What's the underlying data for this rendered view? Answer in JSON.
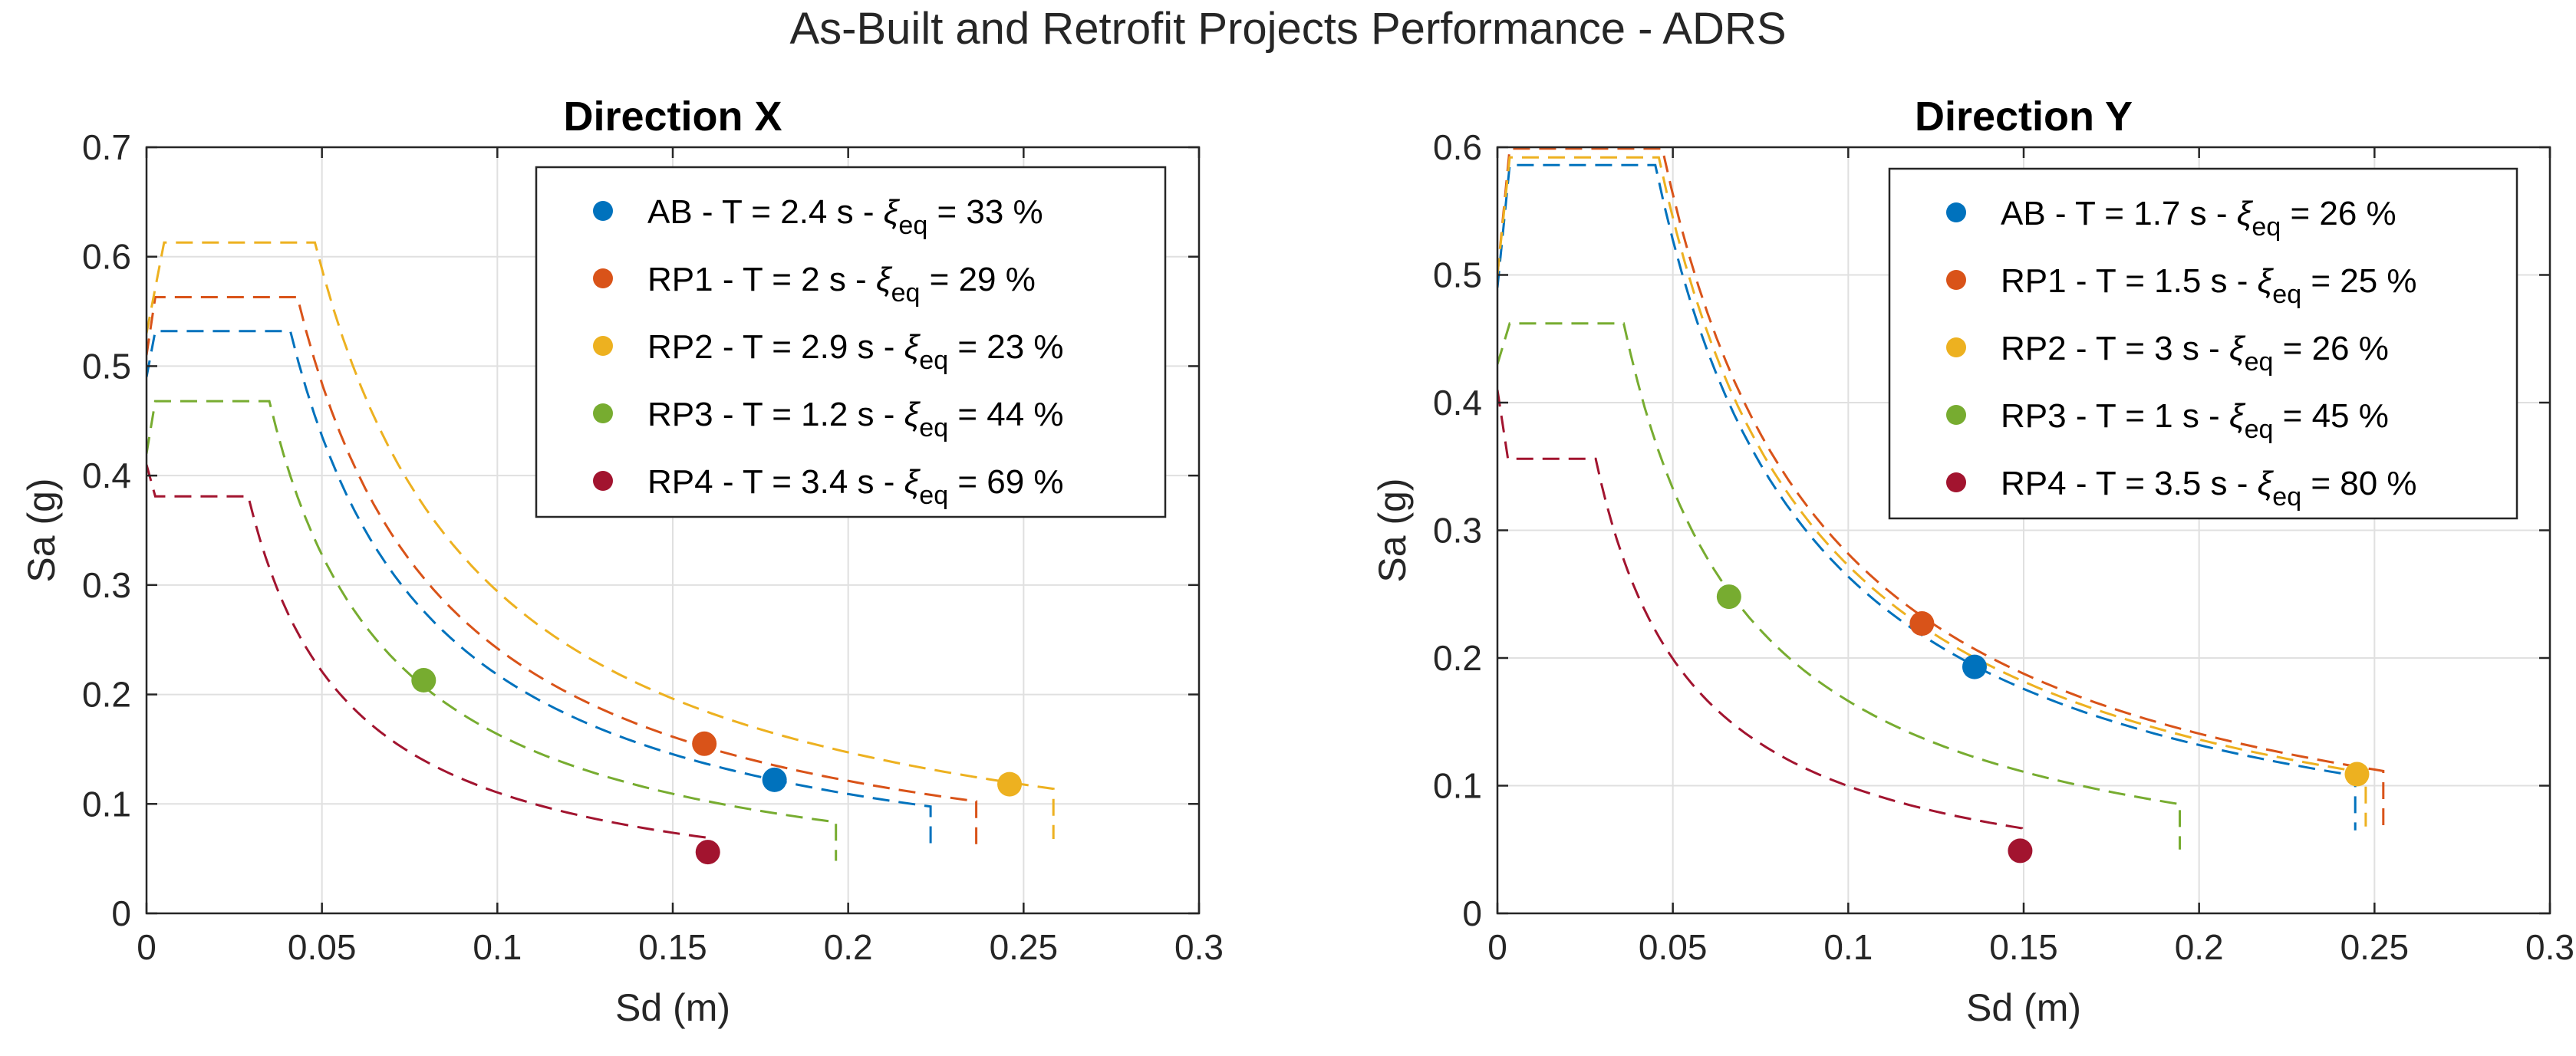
{
  "figure": {
    "title": "As-Built and Retrofit Projects Performance - ADRS"
  },
  "colors": {
    "AB": "#0072BD",
    "RP1": "#D95319",
    "RP2": "#EDB120",
    "RP3": "#77AC30",
    "RP4": "#A2142F"
  },
  "chart_data": [
    {
      "type": "line",
      "title": "Direction X",
      "xlabel": "Sd (m)",
      "ylabel": "Sa (g)",
      "xlim": [
        0,
        0.3
      ],
      "ylim": [
        0,
        0.7
      ],
      "xticks": [
        0,
        0.05,
        0.1,
        0.15,
        0.2,
        0.25,
        0.3
      ],
      "xtick_labels": [
        "0",
        "0.05",
        "0.1",
        "0.15",
        "0.2",
        "0.25",
        "0.3"
      ],
      "yticks": [
        0,
        0.1,
        0.2,
        0.3,
        0.4,
        0.5,
        0.6,
        0.7
      ],
      "ytick_labels": [
        "0",
        "0.1",
        "0.2",
        "0.3",
        "0.4",
        "0.5",
        "0.6",
        "0.7"
      ],
      "grid": true,
      "legend_position": "top-right",
      "series": [
        {
          "key": "AB",
          "label_prefix": "AB - T = 2.4 s - ",
          "label_suffix": " = 33 %",
          "spectrum": {
            "a0": 0.49,
            "x1": 0.0025,
            "plateau": 0.532,
            "xc": 0.041,
            "xend": 0.2235,
            "dropTo": 0.058
          },
          "point": {
            "sd": 0.179,
            "sa": 0.122
          }
        },
        {
          "key": "RP1",
          "label_prefix": "RP1 - T = 2 s - ",
          "label_suffix": " = 29 %",
          "spectrum": {
            "a0": 0.51,
            "x1": 0.0025,
            "plateau": 0.563,
            "xc": 0.043,
            "xend": 0.2365,
            "dropTo": 0.062
          },
          "point": {
            "sd": 0.159,
            "sa": 0.155
          }
        },
        {
          "key": "RP2",
          "label_prefix": "RP2 - T = 2.9 s - ",
          "label_suffix": " = 23 %",
          "spectrum": {
            "a0": 0.53,
            "x1": 0.005,
            "plateau": 0.613,
            "xc": 0.048,
            "xend": 0.2585,
            "dropTo": 0.068
          },
          "point": {
            "sd": 0.246,
            "sa": 0.118
          }
        },
        {
          "key": "RP3",
          "label_prefix": "RP3 - T = 1.2 s - ",
          "label_suffix": " = 44 %",
          "spectrum": {
            "a0": 0.42,
            "x1": 0.0025,
            "plateau": 0.468,
            "xc": 0.035,
            "xend": 0.1965,
            "dropTo": 0.048
          },
          "point": {
            "sd": 0.079,
            "sa": 0.213
          }
        },
        {
          "key": "RP4",
          "label_prefix": "RP4 - T = 3.4 s - ",
          "label_suffix": " = 69 %",
          "spectrum": {
            "a0": 0.41,
            "x1": 0.0025,
            "plateau": 0.381,
            "xc": 0.029,
            "xend": 0.1595,
            "dropTo": 0.05
          },
          "point": {
            "sd": 0.16,
            "sa": 0.056
          }
        }
      ]
    },
    {
      "type": "line",
      "title": "Direction Y",
      "xlabel": "Sd (m)",
      "ylabel": "Sa (g)",
      "xlim": [
        0,
        0.3
      ],
      "ylim": [
        0,
        0.6
      ],
      "xticks": [
        0,
        0.05,
        0.1,
        0.15,
        0.2,
        0.25,
        0.3
      ],
      "xtick_labels": [
        "0",
        "0.05",
        "0.1",
        "0.15",
        "0.2",
        "0.25",
        "0.3"
      ],
      "yticks": [
        0,
        0.1,
        0.2,
        0.3,
        0.4,
        0.5,
        0.6
      ],
      "ytick_labels": [
        "0",
        "0.1",
        "0.2",
        "0.3",
        "0.4",
        "0.5",
        "0.6"
      ],
      "grid": true,
      "legend_position": "top-right",
      "series": [
        {
          "key": "AB",
          "label_prefix": "AB - T = 1.7 s - ",
          "label_suffix": " = 26 %",
          "spectrum": {
            "a0": 0.49,
            "x1": 0.0035,
            "plateau": 0.586,
            "xc": 0.045,
            "xend": 0.2445,
            "dropTo": 0.065
          },
          "point": {
            "sd": 0.136,
            "sa": 0.193
          }
        },
        {
          "key": "RP1",
          "label_prefix": "RP1 - T = 1.5 s - ",
          "label_suffix": " = 25 %",
          "spectrum": {
            "a0": 0.5,
            "x1": 0.0035,
            "plateau": 0.599,
            "xc": 0.047,
            "xend": 0.2525,
            "dropTo": 0.062
          },
          "point": {
            "sd": 0.121,
            "sa": 0.227
          }
        },
        {
          "key": "RP2",
          "label_prefix": "RP2 - T = 3 s - ",
          "label_suffix": " = 26 %",
          "spectrum": {
            "a0": 0.5,
            "x1": 0.0035,
            "plateau": 0.592,
            "xc": 0.046,
            "xend": 0.2475,
            "dropTo": 0.068
          },
          "point": {
            "sd": 0.245,
            "sa": 0.109
          }
        },
        {
          "key": "RP3",
          "label_prefix": "RP3 - T = 1 s - ",
          "label_suffix": " = 45 %",
          "spectrum": {
            "a0": 0.43,
            "x1": 0.0035,
            "plateau": 0.462,
            "xc": 0.036,
            "xend": 0.1945,
            "dropTo": 0.05
          },
          "point": {
            "sd": 0.066,
            "sa": 0.248
          }
        },
        {
          "key": "RP4",
          "label_prefix": "RP4 - T = 3.5 s - ",
          "label_suffix": " = 80 %",
          "spectrum": {
            "a0": 0.41,
            "x1": 0.003,
            "plateau": 0.356,
            "xc": 0.028,
            "xend": 0.1495,
            "dropTo": 0.064
          },
          "point": {
            "sd": 0.149,
            "sa": 0.049
          }
        }
      ]
    }
  ],
  "legend_symbol": {
    "xi": "ξ",
    "eq": "eq"
  }
}
